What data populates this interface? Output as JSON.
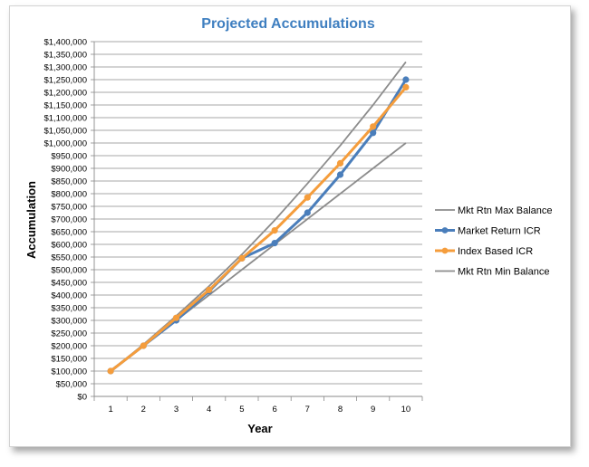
{
  "chart_data": {
    "type": "line",
    "title": "Projected Accumulations",
    "xlabel": "Year",
    "ylabel": "Accumulation",
    "x": [
      1,
      2,
      3,
      4,
      5,
      6,
      7,
      8,
      9,
      10
    ],
    "ylim": [
      0,
      1400000
    ],
    "ytick_step": 50000,
    "ytick_labels": [
      "$0",
      "$50,000",
      "$100,000",
      "$150,000",
      "$200,000",
      "$250,000",
      "$300,000",
      "$350,000",
      "$400,000",
      "$450,000",
      "$500,000",
      "$550,000",
      "$600,000",
      "$650,000",
      "$700,000",
      "$750,000",
      "$800,000",
      "$850,000",
      "$900,000",
      "$950,000",
      "$1,000,000",
      "$1,050,000",
      "$1,100,000",
      "$1,150,000",
      "$1,200,000",
      "$1,250,000",
      "$1,300,000",
      "$1,350,000",
      "$1,400,000"
    ],
    "grid": true,
    "legend_position": "right",
    "series": [
      {
        "name": "Mkt Rtn Max Balance",
        "color": "#8c8c8c",
        "markers": false,
        "values": [
          100000,
          205000,
          318000,
          435000,
          560000,
          695000,
          840000,
          990000,
          1150000,
          1320000
        ]
      },
      {
        "name": "Market Return ICR",
        "color": "#4a7ebb",
        "markers": true,
        "values": [
          100000,
          200000,
          300000,
          415000,
          545000,
          605000,
          725000,
          875000,
          1040000,
          1250000
        ]
      },
      {
        "name": "Index Based ICR",
        "color": "#f59d3c",
        "markers": true,
        "values": [
          100000,
          200000,
          310000,
          420000,
          545000,
          655000,
          785000,
          920000,
          1065000,
          1220000
        ]
      },
      {
        "name": "Mkt Rtn Min Balance",
        "color": "#8c8c8c",
        "markers": false,
        "values": [
          100000,
          200000,
          300000,
          400000,
          500000,
          600000,
          700000,
          800000,
          900000,
          1000000
        ]
      }
    ]
  }
}
